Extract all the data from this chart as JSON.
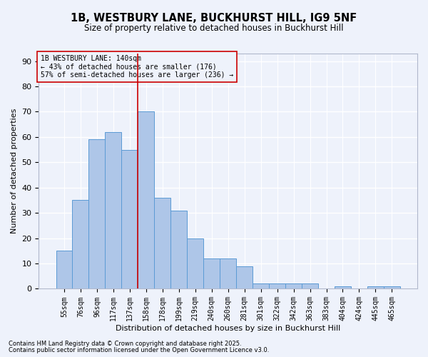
{
  "title_line1": "1B, WESTBURY LANE, BUCKHURST HILL, IG9 5NF",
  "title_line2": "Size of property relative to detached houses in Buckhurst Hill",
  "xlabel": "Distribution of detached houses by size in Buckhurst Hill",
  "ylabel": "Number of detached properties",
  "categories": [
    "55sqm",
    "76sqm",
    "96sqm",
    "117sqm",
    "137sqm",
    "158sqm",
    "178sqm",
    "199sqm",
    "219sqm",
    "240sqm",
    "260sqm",
    "281sqm",
    "301sqm",
    "322sqm",
    "342sqm",
    "363sqm",
    "383sqm",
    "404sqm",
    "424sqm",
    "445sqm",
    "465sqm"
  ],
  "values": [
    15,
    35,
    59,
    62,
    55,
    70,
    36,
    31,
    20,
    12,
    12,
    9,
    2,
    2,
    2,
    2,
    0,
    1,
    0,
    1,
    1
  ],
  "bar_color": "#aec6e8",
  "bar_edge_color": "#5b9bd5",
  "vline_color": "#cc0000",
  "vline_x_index": 4,
  "annotation_title": "1B WESTBURY LANE: 140sqm",
  "annotation_line2": "← 43% of detached houses are smaller (176)",
  "annotation_line3": "57% of semi-detached houses are larger (236) →",
  "ylim": [
    0,
    93
  ],
  "yticks": [
    0,
    10,
    20,
    30,
    40,
    50,
    60,
    70,
    80,
    90
  ],
  "footnote1": "Contains HM Land Registry data © Crown copyright and database right 2025.",
  "footnote2": "Contains public sector information licensed under the Open Government Licence v3.0.",
  "bg_color": "#eef2fb",
  "grid_color": "#ffffff"
}
